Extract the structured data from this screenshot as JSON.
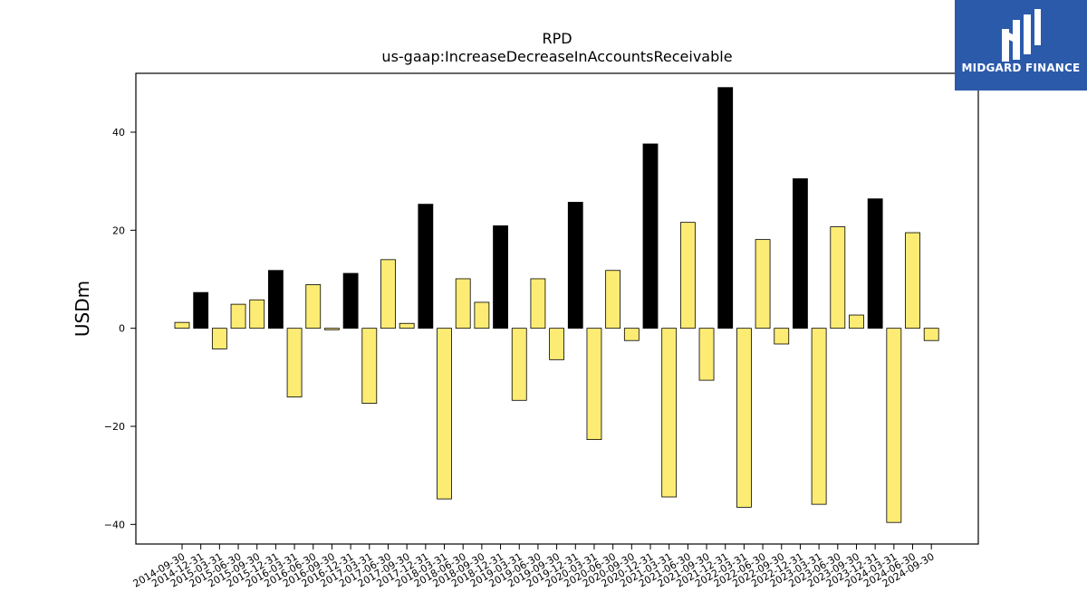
{
  "brand": {
    "name": "MIDGARD FINANCE",
    "logo_icon": "midgard-logo-icon",
    "background": "#2b5aab"
  },
  "chart_data": {
    "type": "bar",
    "title": "RPD",
    "subtitle": "us-gaap:IncreaseDecreaseInAccountsReceivable",
    "xlabel": "",
    "ylabel": "USDm",
    "ylim": [
      -44,
      52
    ],
    "yticks": [
      -40,
      -20,
      0,
      20,
      40
    ],
    "grid": false,
    "legend": "none",
    "colors": {
      "quarter": "#fcec74",
      "year_end": "#000000",
      "edge": "#000000"
    },
    "categories": [
      "2014-09-30",
      "2014-12-31",
      "2015-03-31",
      "2015-06-30",
      "2015-09-30",
      "2015-12-31",
      "2016-03-31",
      "2016-06-30",
      "2016-09-30",
      "2016-12-31",
      "2017-03-31",
      "2017-06-30",
      "2017-09-30",
      "2017-12-31",
      "2018-03-31",
      "2018-06-30",
      "2018-09-30",
      "2018-12-31",
      "2019-03-31",
      "2019-06-30",
      "2019-09-30",
      "2019-12-31",
      "2020-03-31",
      "2020-06-30",
      "2020-09-30",
      "2020-12-31",
      "2021-03-31",
      "2021-06-30",
      "2021-09-30",
      "2021-12-31",
      "2022-03-31",
      "2022-06-30",
      "2022-09-30",
      "2022-12-31",
      "2023-03-31",
      "2023-06-30",
      "2023-09-30",
      "2023-12-31",
      "2024-03-31",
      "2024-06-30",
      "2024-09-30"
    ],
    "values": [
      1.2,
      7.3,
      -4.2,
      4.9,
      5.8,
      11.8,
      -14.0,
      8.9,
      -0.3,
      11.2,
      -15.3,
      14.0,
      1.0,
      25.3,
      -34.8,
      10.1,
      5.3,
      20.9,
      -14.7,
      10.1,
      -6.4,
      25.7,
      -22.7,
      11.8,
      -2.5,
      37.6,
      -34.4,
      21.6,
      -10.6,
      49.1,
      -36.5,
      18.1,
      -3.2,
      30.5,
      -35.9,
      20.7,
      2.7,
      26.4,
      -39.6,
      19.5,
      -2.5
    ]
  }
}
